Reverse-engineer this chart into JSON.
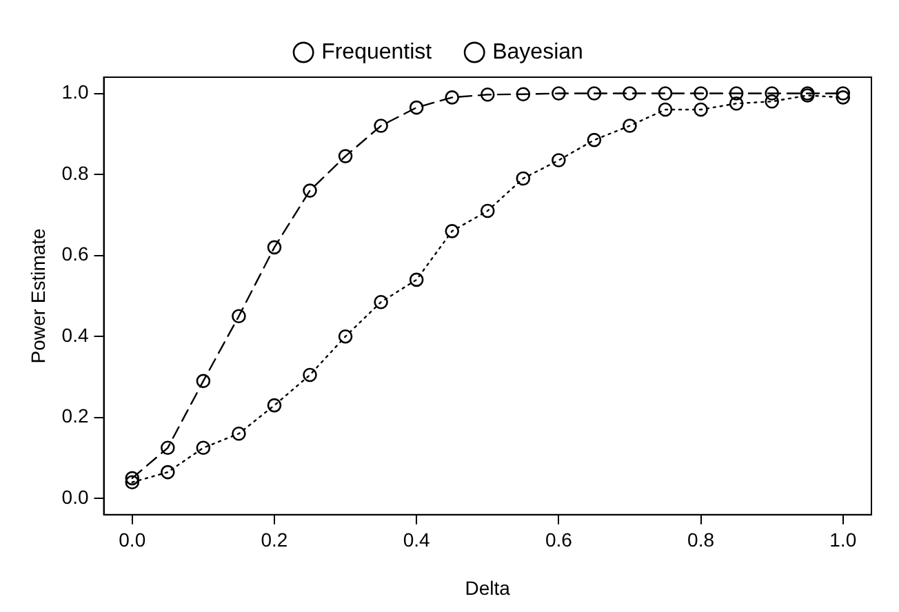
{
  "chart_data": {
    "type": "line",
    "xlabel": "Delta",
    "ylabel": "Power Estimate",
    "x": [
      0,
      0.05,
      0.1,
      0.15,
      0.2,
      0.25,
      0.3,
      0.35,
      0.4,
      0.45,
      0.5,
      0.55,
      0.6,
      0.65,
      0.7,
      0.75,
      0.8,
      0.85,
      0.9,
      0.95,
      1
    ],
    "series": [
      {
        "name": "Frequentist",
        "color": "#000000",
        "line_style": "dotted",
        "values": [
          0.04,
          0.065,
          0.125,
          0.16,
          0.23,
          0.305,
          0.4,
          0.485,
          0.54,
          0.66,
          0.71,
          0.79,
          0.835,
          0.885,
          0.92,
          0.96,
          0.96,
          0.975,
          0.98,
          0.995,
          0.99
        ]
      },
      {
        "name": "Bayesian",
        "color": "#000000",
        "line_style": "dashed",
        "values": [
          0.05,
          0.125,
          0.29,
          0.45,
          0.62,
          0.76,
          0.845,
          0.92,
          0.965,
          0.99,
          0.997,
          0.998,
          1,
          1,
          1,
          1,
          1,
          1,
          1,
          1,
          1
        ]
      }
    ],
    "xlim": [
      -0.04,
      1.04
    ],
    "xticks": [
      {
        "value": 0,
        "label": "0.0"
      },
      {
        "value": 0.2,
        "label": "0.2"
      },
      {
        "value": 0.4,
        "label": "0.4"
      },
      {
        "value": 0.6,
        "label": "0.6"
      },
      {
        "value": 0.8,
        "label": "0.8"
      },
      {
        "value": 1,
        "label": "1.0"
      }
    ],
    "ylim": [
      -0.04,
      1.04
    ],
    "yticks": [
      {
        "value": 0,
        "label": "0.0"
      },
      {
        "value": 0.2,
        "label": "0.2"
      },
      {
        "value": 0.4,
        "label": "0.4"
      },
      {
        "value": 0.6,
        "label": "0.6"
      },
      {
        "value": 0.8,
        "label": "0.8"
      },
      {
        "value": 1,
        "label": "1.0"
      }
    ],
    "grid": false,
    "legend": "top",
    "marker": "circle"
  }
}
